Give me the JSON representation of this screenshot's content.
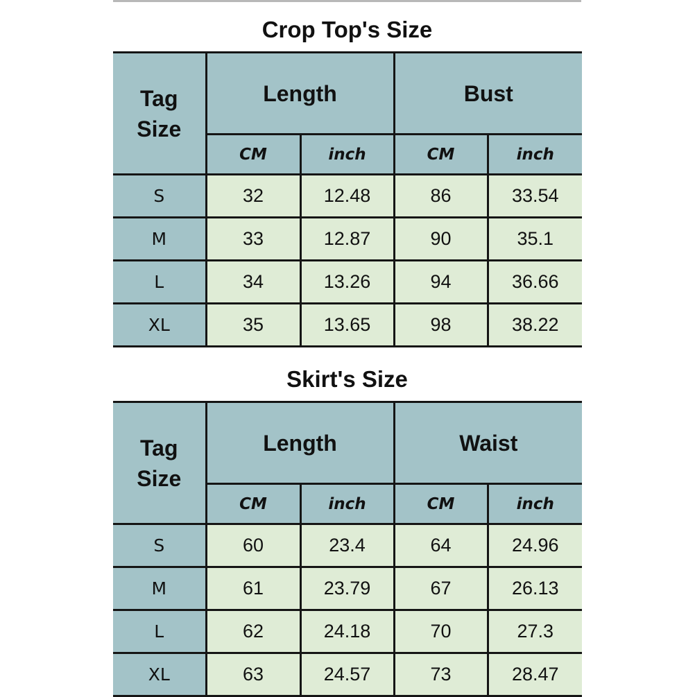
{
  "colors": {
    "header": "#a3c3c8",
    "data": "#dfecd6",
    "border": "#151515"
  },
  "tables": [
    {
      "title": "Crop Top's Size",
      "tag_header": "Tag Size",
      "groups": [
        "Length",
        "Bust"
      ],
      "units": [
        "CM",
        "inch",
        "CM",
        "inch"
      ],
      "rows": [
        [
          "S",
          "32",
          "12.48",
          "86",
          "33.54"
        ],
        [
          "M",
          "33",
          "12.87",
          "90",
          "35.1"
        ],
        [
          "L",
          "34",
          "13.26",
          "94",
          "36.66"
        ],
        [
          "XL",
          "35",
          "13.65",
          "98",
          "38.22"
        ]
      ]
    },
    {
      "title": "Skirt's Size",
      "tag_header": "Tag Size",
      "groups": [
        "Length",
        "Waist"
      ],
      "units": [
        "CM",
        "inch",
        "CM",
        "inch"
      ],
      "rows": [
        [
          "S",
          "60",
          "23.4",
          "64",
          "24.96"
        ],
        [
          "M",
          "61",
          "23.79",
          "67",
          "26.13"
        ],
        [
          "L",
          "62",
          "24.18",
          "70",
          "27.3"
        ],
        [
          "XL",
          "63",
          "24.57",
          "73",
          "28.47"
        ]
      ]
    }
  ]
}
